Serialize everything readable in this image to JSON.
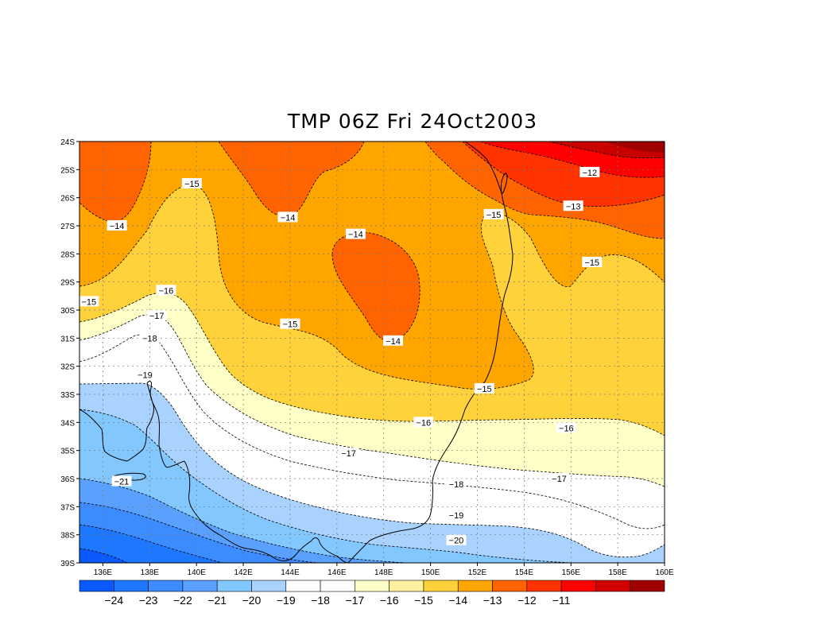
{
  "title": "TMP 06Z Fri 24Oct2003",
  "lat_labels": [
    "24S",
    "25S",
    "26S",
    "27S",
    "28S",
    "29S",
    "30S",
    "31S",
    "32S",
    "33S",
    "34S",
    "35S",
    "36S",
    "37S",
    "38S",
    "39S"
  ],
  "lon_labels": [
    "136E",
    "138E",
    "140E",
    "142E",
    "144E",
    "146E",
    "148E",
    "150E",
    "152E",
    "154E",
    "156E",
    "158E",
    "160E"
  ],
  "contour_labels": [
    {
      "text": "-12",
      "lon": 156.8,
      "lat": -25.1
    },
    {
      "text": "-13",
      "lon": 156.1,
      "lat": -26.3
    },
    {
      "text": "-14",
      "lon": 136.6,
      "lat": -27.0
    },
    {
      "text": "-15",
      "lon": 139.8,
      "lat": -25.5
    },
    {
      "text": "-14",
      "lon": 143.9,
      "lat": -26.7
    },
    {
      "text": "-14",
      "lon": 146.8,
      "lat": -27.3
    },
    {
      "text": "-15",
      "lon": 152.7,
      "lat": -26.6
    },
    {
      "text": "-15",
      "lon": 156.9,
      "lat": -28.3
    },
    {
      "text": "-15",
      "lon": 135.4,
      "lat": -29.7
    },
    {
      "text": "-16",
      "lon": 138.7,
      "lat": -29.3
    },
    {
      "text": "-17",
      "lon": 138.3,
      "lat": -30.2
    },
    {
      "text": "-15",
      "lon": 144.0,
      "lat": -30.5
    },
    {
      "text": "-14",
      "lon": 148.4,
      "lat": -31.1
    },
    {
      "text": "-18",
      "lon": 138.0,
      "lat": -31.0
    },
    {
      "text": "-19",
      "lon": 137.8,
      "lat": -32.3
    },
    {
      "text": "-15",
      "lon": 152.3,
      "lat": -32.8
    },
    {
      "text": "-16",
      "lon": 149.7,
      "lat": -34.0
    },
    {
      "text": "-16",
      "lon": 155.8,
      "lat": -34.2
    },
    {
      "text": "-17",
      "lon": 146.5,
      "lat": -35.1
    },
    {
      "text": "-17",
      "lon": 155.5,
      "lat": -36.0
    },
    {
      "text": "-21",
      "lon": 136.8,
      "lat": -36.1
    },
    {
      "text": "-18",
      "lon": 151.1,
      "lat": -36.2
    },
    {
      "text": "-19",
      "lon": 151.1,
      "lat": -37.3
    },
    {
      "text": "-20",
      "lon": 151.1,
      "lat": -38.2
    }
  ],
  "colorbar": {
    "labels": [
      "-24",
      "-23",
      "-22",
      "-21",
      "-20",
      "-19",
      "-18",
      "-17",
      "-16",
      "-15",
      "-14",
      "-13",
      "-12",
      "-11"
    ],
    "colors": [
      "#0a5aff",
      "#1e78ff",
      "#3c8cff",
      "#5aa0ff",
      "#82c8ff",
      "#aad2ff",
      "#ffffff",
      "#ffffff",
      "#ffffc8",
      "#fff0a0",
      "#ffd23c",
      "#ffa500",
      "#ff6400",
      "#ff3200",
      "#ff0000",
      "#d20000",
      "#a00000"
    ]
  },
  "fill_colors": {
    "m24": "#0a5aff",
    "m23": "#1e78ff",
    "m22": "#3c8cff",
    "m21": "#5aa0ff",
    "m20": "#82c8ff",
    "m19": "#aad2ff",
    "m18": "#ffffff",
    "m17": "#ffffff",
    "m16": "#ffffc8",
    "m15": "#ffd23c",
    "m14": "#ffa500",
    "m13": "#ff6400",
    "m12": "#ff3200",
    "m11": "#ff0000",
    "m10": "#c80000",
    "m9": "#a00000"
  }
}
